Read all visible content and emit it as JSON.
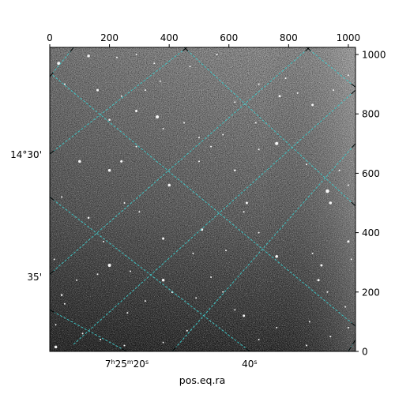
{
  "chart_data": {
    "type": "image",
    "xlabel": "pos.eq.ra",
    "ylabel": "",
    "xlim": [
      0,
      1024
    ],
    "ylim": [
      0,
      1024
    ],
    "pixel_ticks": {
      "top": [
        "0",
        "200",
        "400",
        "600",
        "800",
        "1000"
      ],
      "top_values": [
        0,
        200,
        400,
        600,
        800,
        1000
      ],
      "right": [
        "0",
        "200",
        "400",
        "600",
        "800",
        "1000"
      ],
      "right_values": [
        0,
        200,
        400,
        600,
        800,
        1000
      ]
    },
    "ra_ticks": [
      {
        "h": "7",
        "m": "25",
        "s": "20",
        "x": 258
      },
      {
        "h": "",
        "m": "",
        "s": "40",
        "x": 669
      }
    ],
    "dec_ticks": [
      {
        "label": "14°30'",
        "y": 663
      },
      {
        "label": "35'",
        "y": 252
      }
    ],
    "grid": true,
    "grid_color": "#3ec8c8",
    "background": "#505050",
    "overlay_grid_lines": [
      {
        "x1": 0,
        "y1": 925,
        "x2": 80,
        "y2": 1024
      },
      {
        "x1": 0,
        "y1": 665,
        "x2": 460,
        "y2": 1024
      },
      {
        "x1": 0,
        "y1": 260,
        "x2": 870,
        "y2": 1024
      },
      {
        "x1": 80,
        "y1": 24,
        "x2": 1024,
        "y2": 880
      },
      {
        "x1": 410,
        "y1": 0,
        "x2": 1024,
        "y2": 700
      },
      {
        "x1": 1000,
        "y1": 0,
        "x2": 1024,
        "y2": 40
      },
      {
        "x1": 0,
        "y1": 140,
        "x2": 258,
        "y2": 0
      },
      {
        "x1": 0,
        "y1": 520,
        "x2": 670,
        "y2": 0
      },
      {
        "x1": 10,
        "y1": 930,
        "x2": 1024,
        "y2": 85
      },
      {
        "x1": 450,
        "y1": 1024,
        "x2": 1024,
        "y2": 490
      },
      {
        "x1": 860,
        "y1": 1024,
        "x2": 1024,
        "y2": 890
      }
    ],
    "stars": [
      [
        30,
        970,
        4
      ],
      [
        130,
        995,
        3.5
      ],
      [
        225,
        990,
        2
      ],
      [
        290,
        1000,
        2
      ],
      [
        350,
        970,
        2
      ],
      [
        470,
        960,
        2
      ],
      [
        560,
        1000,
        2
      ],
      [
        50,
        900,
        2
      ],
      [
        160,
        880,
        3
      ],
      [
        200,
        780,
        2.5
      ],
      [
        240,
        860,
        2
      ],
      [
        290,
        810,
        3
      ],
      [
        320,
        880,
        2
      ],
      [
        370,
        910,
        2
      ],
      [
        360,
        790,
        4
      ],
      [
        380,
        750,
        2
      ],
      [
        450,
        770,
        2
      ],
      [
        500,
        720,
        2
      ],
      [
        580,
        730,
        2
      ],
      [
        620,
        840,
        2
      ],
      [
        690,
        770,
        2
      ],
      [
        700,
        900,
        2
      ],
      [
        770,
        860,
        3
      ],
      [
        790,
        920,
        2
      ],
      [
        830,
        870,
        2
      ],
      [
        880,
        830,
        3
      ],
      [
        950,
        880,
        2
      ],
      [
        1000,
        930,
        2
      ],
      [
        100,
        640,
        3.5
      ],
      [
        200,
        610,
        3.5
      ],
      [
        240,
        640,
        3
      ],
      [
        290,
        690,
        2
      ],
      [
        400,
        560,
        3.5
      ],
      [
        500,
        640,
        2
      ],
      [
        540,
        690,
        2
      ],
      [
        620,
        610,
        2.5
      ],
      [
        660,
        500,
        3
      ],
      [
        700,
        680,
        2
      ],
      [
        760,
        700,
        4
      ],
      [
        860,
        630,
        2
      ],
      [
        930,
        540,
        4.5
      ],
      [
        940,
        500,
        3.5
      ],
      [
        970,
        610,
        2
      ],
      [
        1000,
        560,
        2
      ],
      [
        40,
        520,
        2
      ],
      [
        130,
        450,
        2.5
      ],
      [
        180,
        370,
        2
      ],
      [
        250,
        500,
        2
      ],
      [
        300,
        470,
        2
      ],
      [
        380,
        380,
        3
      ],
      [
        480,
        330,
        2
      ],
      [
        510,
        410,
        3
      ],
      [
        590,
        340,
        2
      ],
      [
        650,
        470,
        2
      ],
      [
        700,
        400,
        2
      ],
      [
        760,
        320,
        3.5
      ],
      [
        880,
        330,
        2
      ],
      [
        910,
        290,
        3
      ],
      [
        1000,
        370,
        3
      ],
      [
        200,
        290,
        4
      ],
      [
        270,
        270,
        2
      ],
      [
        380,
        240,
        3.5
      ],
      [
        410,
        200,
        2.5
      ],
      [
        490,
        180,
        2
      ],
      [
        540,
        250,
        2
      ],
      [
        580,
        200,
        2
      ],
      [
        620,
        140,
        2
      ],
      [
        650,
        120,
        3
      ],
      [
        760,
        80,
        2
      ],
      [
        870,
        100,
        2
      ],
      [
        900,
        240,
        3
      ],
      [
        930,
        200,
        2
      ],
      [
        990,
        150,
        2
      ],
      [
        1000,
        80,
        2
      ],
      [
        40,
        190,
        2.5
      ],
      [
        50,
        160,
        2
      ],
      [
        160,
        260,
        2
      ],
      [
        260,
        130,
        2
      ],
      [
        320,
        170,
        2
      ],
      [
        20,
        90,
        2
      ],
      [
        110,
        60,
        2
      ],
      [
        170,
        40,
        2
      ],
      [
        250,
        20,
        2
      ],
      [
        380,
        30,
        2
      ],
      [
        460,
        70,
        2
      ],
      [
        700,
        40,
        2
      ],
      [
        860,
        20,
        2
      ],
      [
        20,
        15,
        3.5
      ],
      [
        940,
        50,
        2
      ],
      [
        1010,
        310,
        2
      ],
      [
        15,
        310,
        2
      ],
      [
        90,
        240,
        2
      ]
    ]
  }
}
